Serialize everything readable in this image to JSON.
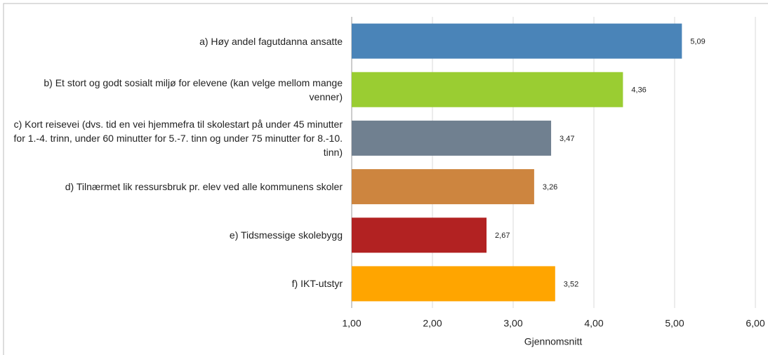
{
  "chart_data": {
    "type": "bar",
    "orientation": "horizontal",
    "categories": [
      "a) Høy andel fagutdanna ansatte",
      "b) Et stort og godt sosialt miljø for elevene (kan velge mellom mange venner)",
      "c) Kort reisevei (dvs. tid en vei hjemmefra til skolestart på under 45 minutter for 1.-4. trinn, under 60 minutter for 5.-7. tinn og under 75 minutter for 8.-10. tinn)",
      "d) Tilnærmet lik ressursbruk pr. elev ved alle kommunens skoler",
      "e) Tidsmessige skolebygg",
      "f) IKT-utstyr"
    ],
    "values": [
      5.09,
      4.36,
      3.47,
      3.26,
      2.67,
      3.52
    ],
    "value_labels": [
      "5,09",
      "4,36",
      "3,47",
      "3,26",
      "2,67",
      "3,52"
    ],
    "colors": [
      "#4a84b8",
      "#9acd32",
      "#708090",
      "#cd853f",
      "#b22222",
      "#ffa500"
    ],
    "xlabel": "Gjennomsnitt",
    "xlim": [
      1,
      6
    ],
    "xticks": [
      {
        "value": 1,
        "label": "1,00"
      },
      {
        "value": 2,
        "label": "2,00"
      },
      {
        "value": 3,
        "label": "3,00"
      },
      {
        "value": 4,
        "label": "4,00"
      },
      {
        "value": 5,
        "label": "5,00"
      },
      {
        "value": 6,
        "label": "6,00"
      }
    ],
    "grid": true
  }
}
